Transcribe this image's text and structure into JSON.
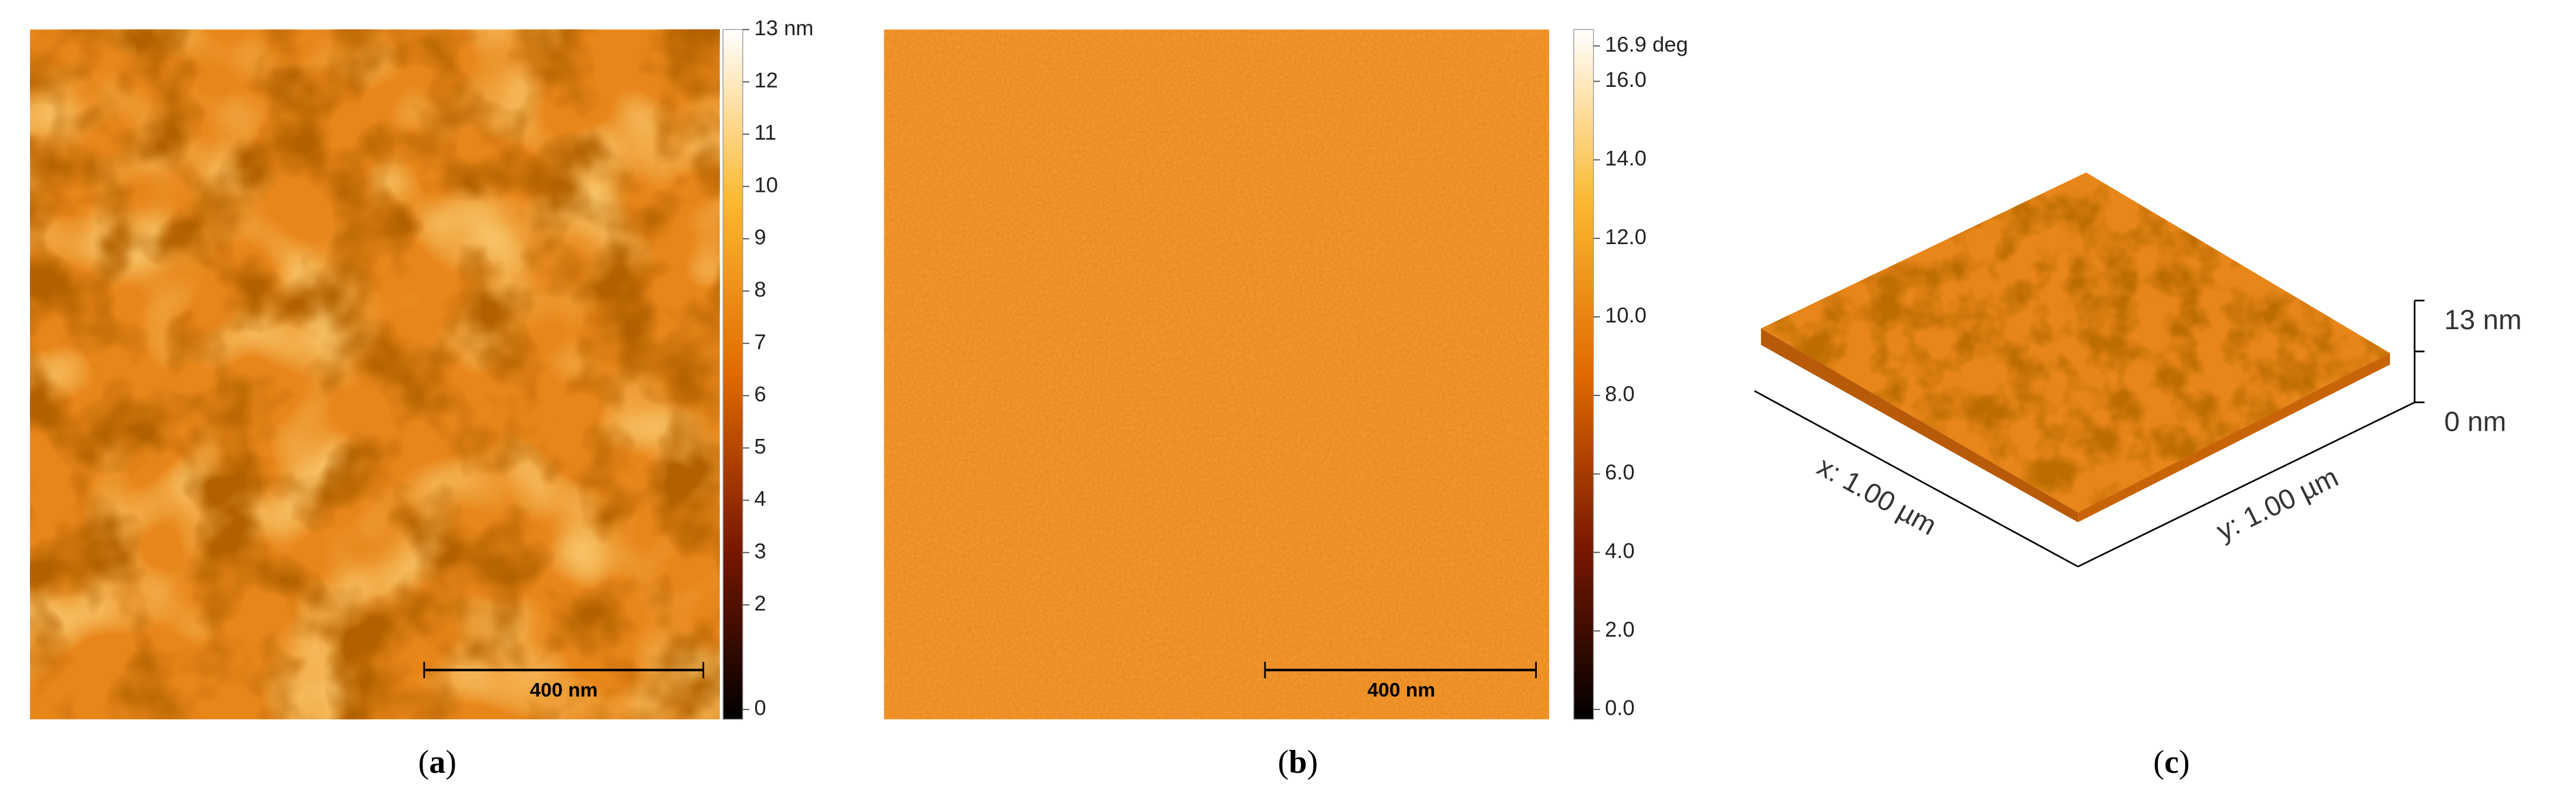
{
  "panels": [
    {
      "colorbar": [
        "13 nm",
        "12",
        "11",
        "10",
        "9",
        "8",
        "7",
        "6",
        "5",
        "4",
        "3",
        "2",
        "0"
      ],
      "scale_bar": "400 nm",
      "caption": {
        "open": "(",
        "label": "a",
        "close": ")"
      }
    },
    {
      "colorbar": [
        "16.9 deg",
        "16.0",
        "14.0",
        "12.0",
        "10.0",
        "8.0",
        "6.0",
        "4.0",
        "2.0",
        "0.0"
      ],
      "scale_bar": "400 nm",
      "caption": {
        "open": "(",
        "label": "b",
        "close": ")"
      }
    },
    {
      "z_top": "13 nm",
      "z_bottom": "0 nm",
      "x_axis": "x: 1.00 µm",
      "y_axis": "y: 1.00 µm",
      "caption": {
        "open": "(",
        "label": "c",
        "close": ")"
      }
    }
  ]
}
